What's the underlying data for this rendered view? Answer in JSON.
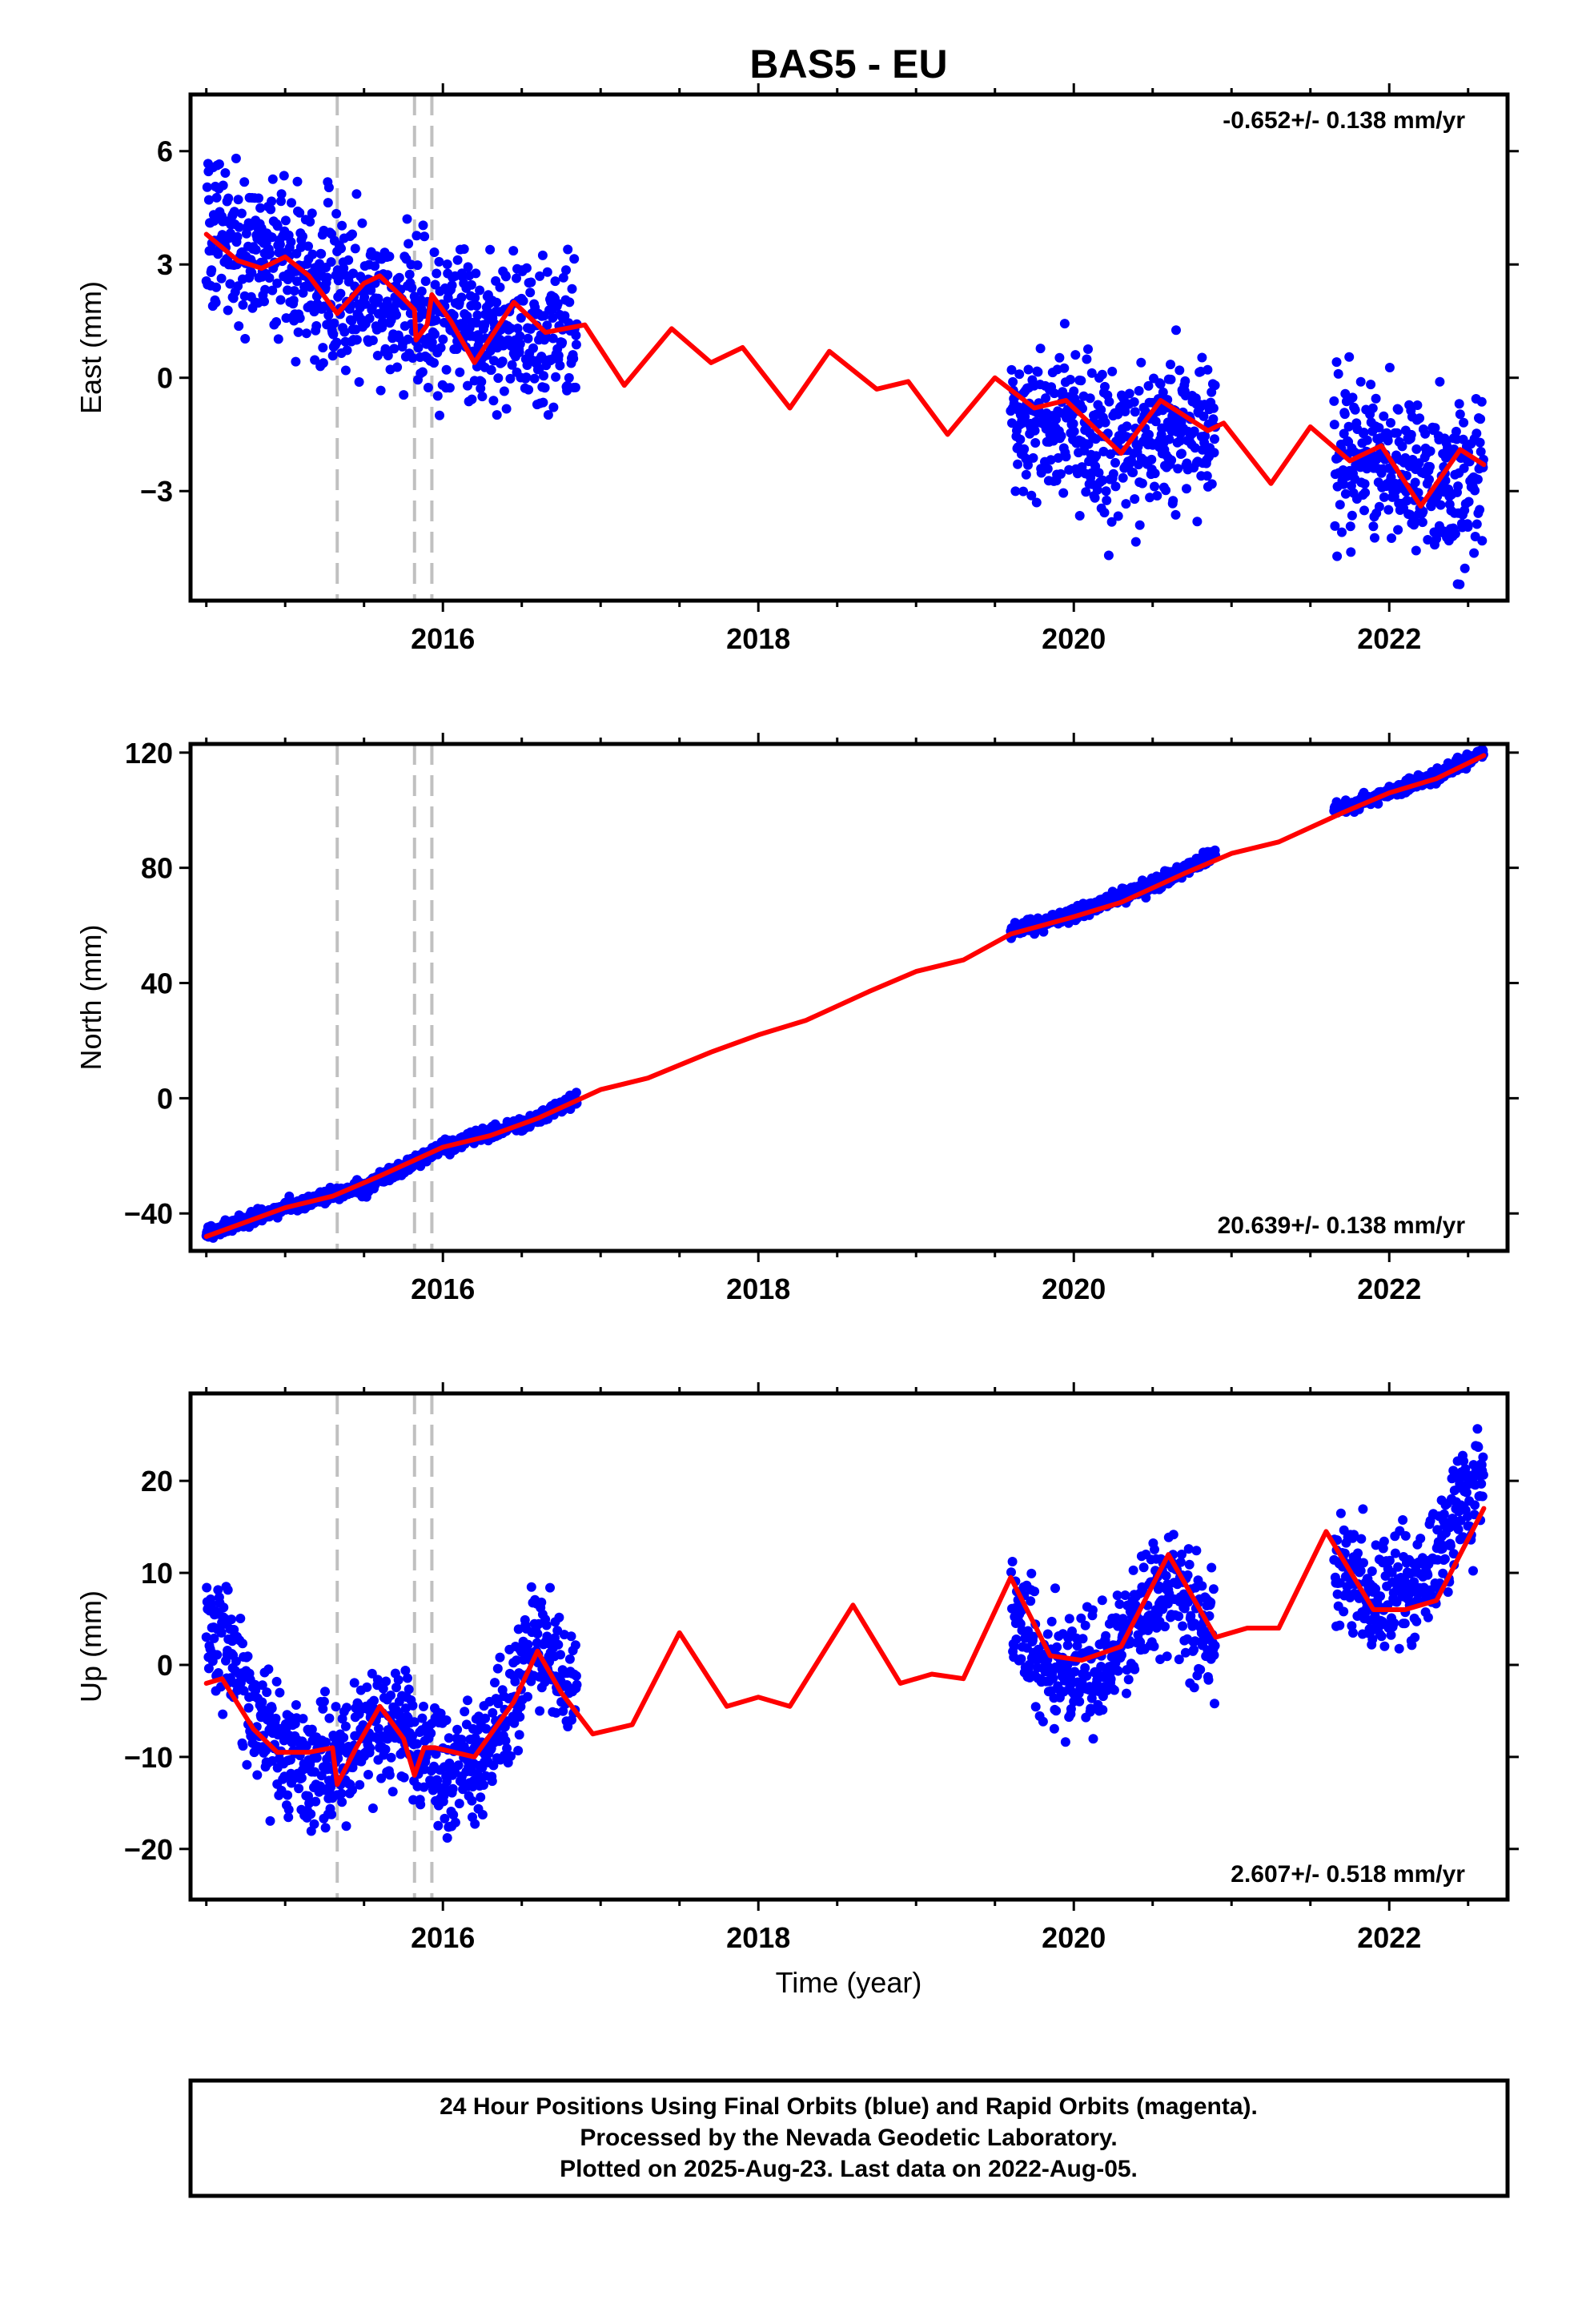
{
  "title": "BAS5 - EU",
  "xlabel": "Time (year)",
  "x_ticks": [
    "2016",
    "2018",
    "2020",
    "2022"
  ],
  "caption": [
    "24 Hour Positions Using Final Orbits (blue) and Rapid Orbits (magenta).",
    "Processed by the Nevada Geodetic Laboratory.",
    "Plotted on 2025-Aug-23. Last data on 2022-Aug-05."
  ],
  "colors": {
    "points": "#0000ff",
    "model": "#ff0000",
    "events": "#c0c0c0"
  },
  "chart_data": [
    {
      "type": "scatter",
      "ylabel": "East (mm)",
      "rate": "-0.652+/- 0.138 mm/yr",
      "xlim": [
        2014.4,
        2022.75
      ],
      "ylim": [
        -5.9,
        7.5
      ],
      "yticks": [
        6,
        3,
        0,
        -3
      ],
      "ytick_labels": [
        "6",
        "3",
        "0",
        "−3"
      ],
      "event_lines": [
        2015.33,
        2015.82,
        2015.93
      ],
      "data_segments": [
        [
          2014.5,
          2016.85
        ],
        [
          2019.6,
          2020.9
        ],
        [
          2021.65,
          2022.6
        ]
      ],
      "series": [
        {
          "kind": "points",
          "color": "#0000ff",
          "spread": 1.0,
          "knots": [
            [
              2014.5,
              3.8
            ],
            [
              2015.0,
              3.0
            ],
            [
              2015.5,
              2.2
            ],
            [
              2016.0,
              1.4
            ],
            [
              2016.5,
              1.2
            ],
            [
              2016.85,
              1.3
            ],
            [
              2019.6,
              -1.1
            ],
            [
              2020.0,
              -1.3
            ],
            [
              2020.3,
              -2.0
            ],
            [
              2020.9,
              -1.3
            ],
            [
              2021.65,
              -2.0
            ],
            [
              2022.0,
              -2.2
            ],
            [
              2022.3,
              -3.0
            ],
            [
              2022.6,
              -2.4
            ]
          ]
        },
        {
          "kind": "line",
          "color": "#ff0000",
          "points": [
            [
              2014.5,
              3.8
            ],
            [
              2014.7,
              3.1
            ],
            [
              2014.85,
              2.9
            ],
            [
              2015.0,
              3.2
            ],
            [
              2015.15,
              2.7
            ],
            [
              2015.33,
              1.7
            ],
            [
              2015.5,
              2.5
            ],
            [
              2015.6,
              2.7
            ],
            [
              2015.75,
              2.1
            ],
            [
              2015.82,
              1.8
            ],
            [
              2015.83,
              1.0
            ],
            [
              2015.9,
              1.4
            ],
            [
              2015.93,
              2.2
            ],
            [
              2016.05,
              1.5
            ],
            [
              2016.2,
              0.4
            ],
            [
              2016.45,
              2.0
            ],
            [
              2016.65,
              1.2
            ],
            [
              2016.9,
              1.4
            ],
            [
              2017.15,
              -0.2
            ],
            [
              2017.45,
              1.3
            ],
            [
              2017.7,
              0.4
            ],
            [
              2017.9,
              0.8
            ],
            [
              2018.2,
              -0.8
            ],
            [
              2018.45,
              0.7
            ],
            [
              2018.75,
              -0.3
            ],
            [
              2018.95,
              -0.1
            ],
            [
              2019.2,
              -1.5
            ],
            [
              2019.5,
              0.0
            ],
            [
              2019.75,
              -0.8
            ],
            [
              2019.95,
              -0.6
            ],
            [
              2020.3,
              -2.0
            ],
            [
              2020.55,
              -0.6
            ],
            [
              2020.85,
              -1.4
            ],
            [
              2020.95,
              -1.2
            ],
            [
              2021.25,
              -2.8
            ],
            [
              2021.5,
              -1.3
            ],
            [
              2021.75,
              -2.2
            ],
            [
              2021.95,
              -1.8
            ],
            [
              2022.2,
              -3.4
            ],
            [
              2022.45,
              -1.9
            ],
            [
              2022.6,
              -2.3
            ]
          ]
        }
      ]
    },
    {
      "type": "scatter",
      "ylabel": "North (mm)",
      "rate": "20.639+/- 0.138 mm/yr",
      "xlim": [
        2014.4,
        2022.75
      ],
      "ylim": [
        -53,
        123
      ],
      "yticks": [
        120,
        80,
        40,
        0,
        -40
      ],
      "ytick_labels": [
        "120",
        "80",
        "40",
        "0",
        "−40"
      ],
      "event_lines": [
        2015.33,
        2015.82,
        2015.93
      ],
      "data_segments": [
        [
          2014.5,
          2016.85
        ],
        [
          2019.6,
          2020.9
        ],
        [
          2021.65,
          2022.6
        ]
      ],
      "series": [
        {
          "kind": "points",
          "color": "#0000ff",
          "spread": 1.2,
          "knots": [
            [
              2014.5,
              -47
            ],
            [
              2015.0,
              -38
            ],
            [
              2015.5,
              -31
            ],
            [
              2016.0,
              -17
            ],
            [
              2016.5,
              -9
            ],
            [
              2016.85,
              0
            ],
            [
              2019.6,
              58
            ],
            [
              2020.0,
              64
            ],
            [
              2020.5,
              74
            ],
            [
              2020.9,
              85
            ],
            [
              2021.65,
              100
            ],
            [
              2022.0,
              106
            ],
            [
              2022.3,
              112
            ],
            [
              2022.6,
              120
            ]
          ]
        },
        {
          "kind": "line",
          "color": "#ff0000",
          "points": [
            [
              2014.5,
              -48
            ],
            [
              2015.0,
              -38
            ],
            [
              2015.3,
              -34
            ],
            [
              2015.6,
              -27
            ],
            [
              2016.0,
              -17
            ],
            [
              2016.3,
              -13
            ],
            [
              2016.6,
              -7
            ],
            [
              2017.0,
              3
            ],
            [
              2017.3,
              7
            ],
            [
              2017.7,
              16
            ],
            [
              2018.0,
              22
            ],
            [
              2018.3,
              27
            ],
            [
              2018.7,
              37
            ],
            [
              2019.0,
              44
            ],
            [
              2019.3,
              48
            ],
            [
              2019.6,
              57
            ],
            [
              2020.0,
              63
            ],
            [
              2020.3,
              68
            ],
            [
              2020.7,
              78
            ],
            [
              2021.0,
              85
            ],
            [
              2021.3,
              89
            ],
            [
              2021.7,
              99
            ],
            [
              2022.0,
              106
            ],
            [
              2022.3,
              111
            ],
            [
              2022.6,
              119
            ]
          ]
        }
      ]
    },
    {
      "type": "scatter",
      "ylabel": "Up (mm)",
      "rate": "2.607+/- 0.518 mm/yr",
      "xlim": [
        2014.4,
        2022.75
      ],
      "ylim": [
        -25.5,
        29.5
      ],
      "yticks": [
        20,
        10,
        0,
        -10,
        -20
      ],
      "ytick_labels": [
        "20",
        "10",
        "0",
        "−10",
        "−20"
      ],
      "event_lines": [
        2015.33,
        2015.82,
        2015.93
      ],
      "data_segments": [
        [
          2014.5,
          2016.85
        ],
        [
          2019.6,
          2020.9
        ],
        [
          2021.65,
          2022.6
        ]
      ],
      "series": [
        {
          "kind": "points",
          "color": "#0000ff",
          "spread": 3.2,
          "knots": [
            [
              2014.5,
              3
            ],
            [
              2014.65,
              2
            ],
            [
              2014.8,
              -6
            ],
            [
              2015.0,
              -10
            ],
            [
              2015.33,
              -11
            ],
            [
              2015.55,
              -6
            ],
            [
              2015.8,
              -9
            ],
            [
              2016.1,
              -12
            ],
            [
              2016.3,
              -9
            ],
            [
              2016.6,
              3
            ],
            [
              2016.85,
              -3
            ],
            [
              2019.6,
              5
            ],
            [
              2019.8,
              0
            ],
            [
              2020.0,
              -1
            ],
            [
              2020.3,
              2
            ],
            [
              2020.6,
              9
            ],
            [
              2020.9,
              3
            ],
            [
              2021.65,
              11
            ],
            [
              2021.9,
              7
            ],
            [
              2022.2,
              8
            ],
            [
              2022.45,
              18
            ],
            [
              2022.6,
              21
            ]
          ]
        },
        {
          "kind": "line",
          "color": "#ff0000",
          "points": [
            [
              2014.5,
              -2
            ],
            [
              2014.6,
              -1.5
            ],
            [
              2014.8,
              -7
            ],
            [
              2014.95,
              -9.5
            ],
            [
              2015.15,
              -9.5
            ],
            [
              2015.3,
              -9
            ],
            [
              2015.33,
              -13
            ],
            [
              2015.45,
              -9
            ],
            [
              2015.6,
              -4.5
            ],
            [
              2015.75,
              -8
            ],
            [
              2015.82,
              -12
            ],
            [
              2015.88,
              -9
            ],
            [
              2015.95,
              -9
            ],
            [
              2016.2,
              -10
            ],
            [
              2016.45,
              -4
            ],
            [
              2016.6,
              1.5
            ],
            [
              2016.75,
              -3
            ],
            [
              2016.95,
              -7.5
            ],
            [
              2017.2,
              -6.5
            ],
            [
              2017.5,
              3.5
            ],
            [
              2017.8,
              -4.5
            ],
            [
              2018.0,
              -3.5
            ],
            [
              2018.2,
              -4.5
            ],
            [
              2018.6,
              6.5
            ],
            [
              2018.9,
              -2
            ],
            [
              2019.1,
              -1
            ],
            [
              2019.3,
              -1.5
            ],
            [
              2019.6,
              9.5
            ],
            [
              2019.85,
              1
            ],
            [
              2020.05,
              0.5
            ],
            [
              2020.3,
              2
            ],
            [
              2020.6,
              12
            ],
            [
              2020.9,
              3
            ],
            [
              2021.1,
              4
            ],
            [
              2021.3,
              4
            ],
            [
              2021.6,
              14.5
            ],
            [
              2021.9,
              6
            ],
            [
              2022.1,
              6
            ],
            [
              2022.3,
              7
            ],
            [
              2022.6,
              17
            ]
          ]
        }
      ]
    }
  ]
}
